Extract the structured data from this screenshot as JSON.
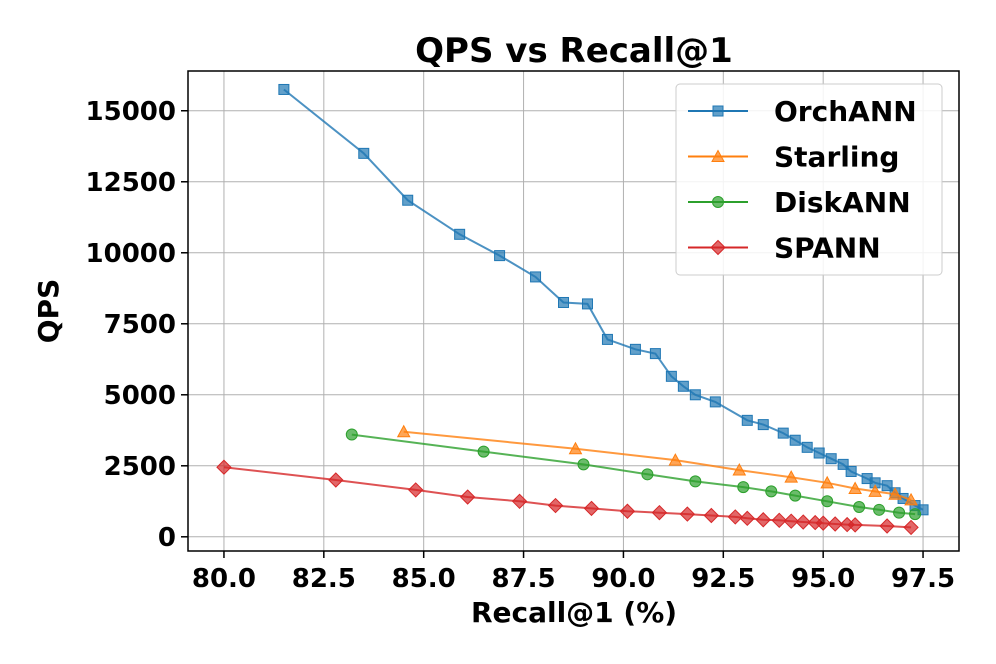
{
  "chart_data": {
    "type": "line",
    "title": "QPS vs Recall@1",
    "xlabel": "Recall@1 (%)",
    "ylabel": "QPS",
    "xlim": [
      79.1,
      98.4
    ],
    "ylim": [
      -500,
      16400
    ],
    "xticks": [
      80.0,
      82.5,
      85.0,
      87.5,
      90.0,
      92.5,
      95.0,
      97.5
    ],
    "xtick_labels": [
      "80.0",
      "82.5",
      "85.0",
      "87.5",
      "90.0",
      "92.5",
      "95.0",
      "97.5"
    ],
    "yticks": [
      0,
      2500,
      5000,
      7500,
      10000,
      12500,
      15000
    ],
    "ytick_labels": [
      "0",
      "2500",
      "5000",
      "7500",
      "10000",
      "12500",
      "15000"
    ],
    "grid": true,
    "legend_position": "top-right",
    "series": [
      {
        "name": "OrchANN",
        "color": "#1f77b4",
        "marker": "square",
        "x": [
          81.5,
          83.5,
          84.6,
          85.9,
          86.9,
          87.8,
          88.5,
          89.1,
          89.6,
          90.3,
          90.8,
          91.2,
          91.5,
          91.8,
          92.3,
          93.1,
          93.5,
          94.0,
          94.3,
          94.6,
          94.9,
          95.2,
          95.5,
          95.7,
          96.1,
          96.3,
          96.6,
          96.8,
          97.0,
          97.3,
          97.5
        ],
        "y": [
          15750,
          13500,
          11850,
          10650,
          9900,
          9150,
          8250,
          8200,
          6950,
          6600,
          6450,
          5650,
          5300,
          5000,
          4750,
          4100,
          3950,
          3650,
          3400,
          3150,
          2950,
          2750,
          2550,
          2300,
          2050,
          1900,
          1800,
          1550,
          1350,
          1100,
          950
        ]
      },
      {
        "name": "Starling",
        "color": "#ff7f0e",
        "marker": "triangle",
        "x": [
          84.5,
          88.8,
          91.3,
          92.9,
          94.2,
          95.1,
          95.8,
          96.3,
          96.8,
          97.2
        ],
        "y": [
          3700,
          3100,
          2700,
          2350,
          2100,
          1900,
          1700,
          1600,
          1500,
          1300
        ]
      },
      {
        "name": "DiskANN",
        "color": "#2ca02c",
        "marker": "circle",
        "x": [
          83.2,
          86.5,
          89.0,
          90.6,
          91.8,
          93.0,
          93.7,
          94.3,
          95.1,
          95.9,
          96.4,
          96.9,
          97.3
        ],
        "y": [
          3600,
          3000,
          2550,
          2200,
          1950,
          1750,
          1600,
          1450,
          1250,
          1050,
          950,
          850,
          800
        ]
      },
      {
        "name": "SPANN",
        "color": "#d62728",
        "marker": "diamond",
        "x": [
          80.0,
          82.8,
          84.8,
          86.1,
          87.4,
          88.3,
          89.2,
          90.1,
          90.9,
          91.6,
          92.2,
          92.8,
          93.1,
          93.5,
          93.9,
          94.2,
          94.5,
          94.8,
          95.0,
          95.3,
          95.6,
          95.8,
          96.6,
          97.2
        ],
        "y": [
          2450,
          2000,
          1650,
          1400,
          1250,
          1100,
          1000,
          900,
          850,
          800,
          750,
          700,
          650,
          600,
          580,
          550,
          520,
          500,
          480,
          450,
          430,
          420,
          380,
          330
        ]
      }
    ]
  }
}
